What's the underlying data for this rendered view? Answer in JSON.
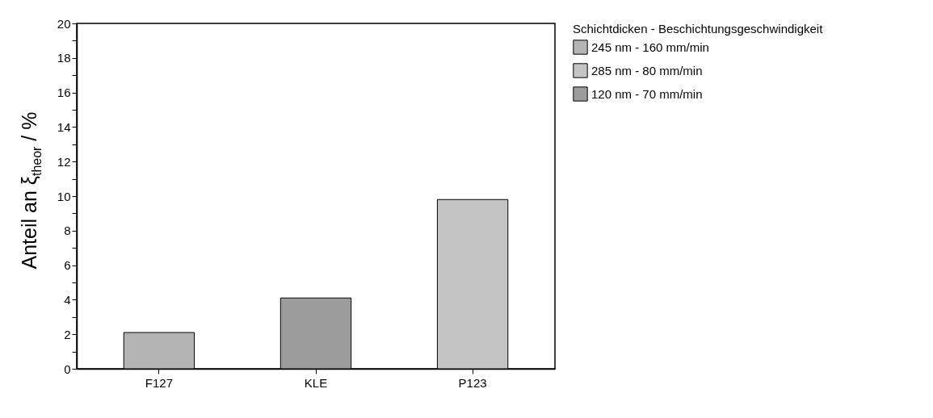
{
  "chart_data": {
    "type": "bar",
    "ylabel": "Anteil an ξ$_{theor}$ / %",
    "legend_title": "Schichtdicken - Beschichtungsgeschwindigkeit",
    "legend": "top right",
    "categories": [
      "F127",
      "KLE",
      "P123"
    ],
    "series": [
      {
        "name": "245 nm - 160 mm/min",
        "color": "#b4b4b4",
        "values": [
          2.1,
          null,
          null
        ]
      },
      {
        "name": "285 nm - 80 mm/min",
        "color": "#c4c4c4",
        "values": [
          null,
          null,
          9.8
        ]
      },
      {
        "name": "120 nm - 70 mm/min",
        "color": "#9c9c9c",
        "values": [
          null,
          4.1,
          null
        ]
      }
    ],
    "ylim": [
      0,
      20
    ],
    "yticks": [
      0,
      {
        "value": 1,
        "label": null
      },
      2,
      {
        "value": 3,
        "label": null
      },
      4,
      {
        "value": 5,
        "label": null
      },
      6,
      {
        "value": 7,
        "label": null
      },
      8,
      {
        "value": 9,
        "label": null
      },
      10,
      {
        "value": 11,
        "label": null
      },
      12,
      {
        "value": 13,
        "label": null
      },
      14,
      {
        "value": 15,
        "label": null
      },
      16,
      {
        "value": 17,
        "label": null
      },
      18,
      {
        "value": 19,
        "label": null
      },
      20
    ]
  }
}
